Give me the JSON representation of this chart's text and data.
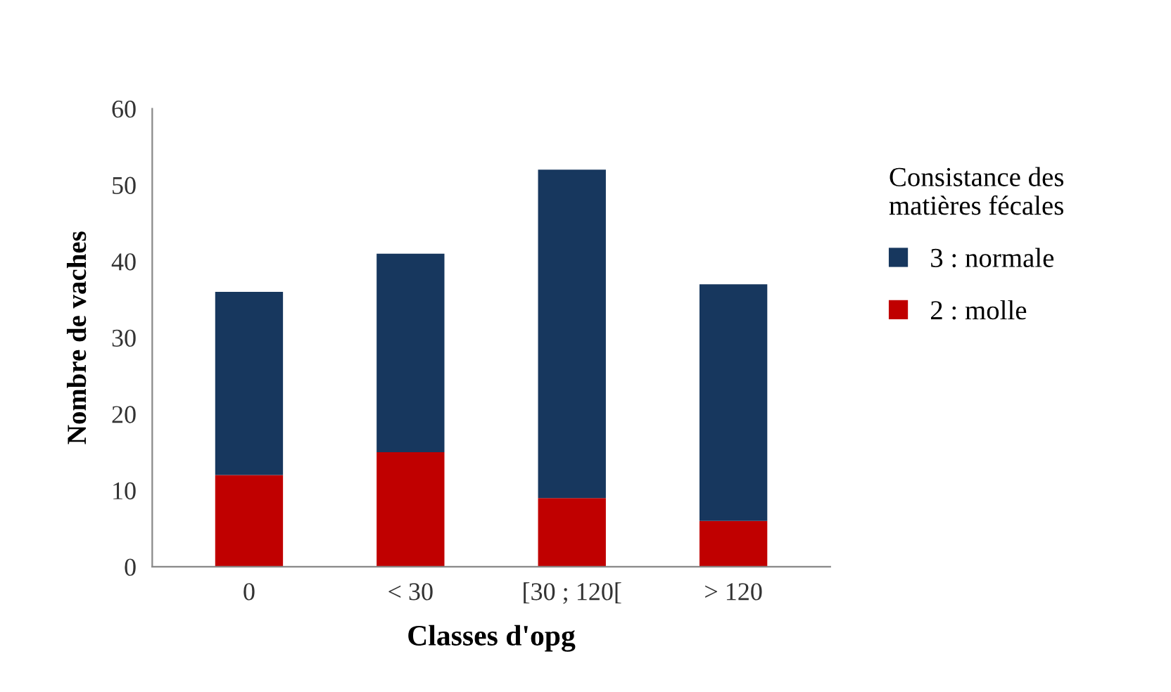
{
  "chart_data": {
    "type": "bar",
    "stacked": true,
    "xlabel": "Classes d'opg",
    "ylabel": "Nombre de vaches",
    "legend_title": "Consistance des\nmatières fécales",
    "legend": "right",
    "categories": [
      "0",
      "< 30",
      "[30 ; 120[",
      "> 120"
    ],
    "series": [
      {
        "name": "2 : molle",
        "color": "#c00000",
        "values": [
          12,
          15,
          9,
          6
        ]
      },
      {
        "name": "3 : normale",
        "color": "#17375e",
        "values": [
          24,
          26,
          43,
          31
        ]
      }
    ],
    "ylim": [
      0,
      60
    ],
    "yticks": [
      0,
      10,
      20,
      30,
      40,
      50,
      60
    ],
    "grid": false
  }
}
